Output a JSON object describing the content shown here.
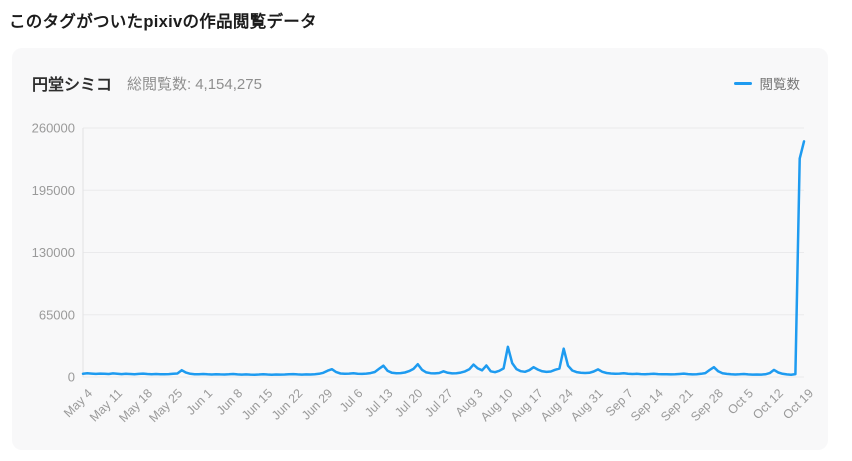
{
  "page": {
    "title": "このタグがついたpixivの作品閲覧データ"
  },
  "panel": {
    "tag_name": "円堂シミコ",
    "total_views_label": "総閲覧数:",
    "total_views_value": "4,154,275",
    "legend_label": "閲覧数"
  },
  "colors": {
    "line": "#1E9BF0",
    "grid": "#eaeaec",
    "axis": "#e2e2e4",
    "tick_text": "#9a9a9a",
    "card_bg": "#f8f8f9"
  },
  "chart_data": {
    "type": "line",
    "title": "",
    "xlabel": "",
    "ylabel": "",
    "x_unit": "day",
    "x_start": "May 4",
    "x_end": "Oct 19",
    "x_tick_every_days": 7,
    "x_tick_labels": [
      "May 4",
      "May 11",
      "May 18",
      "May 25",
      "Jun 1",
      "Jun 8",
      "Jun 15",
      "Jun 22",
      "Jun 29",
      "Jul 6",
      "Jul 13",
      "Jul 20",
      "Jul 27",
      "Aug 3",
      "Aug 10",
      "Aug 17",
      "Aug 24",
      "Aug 31",
      "Sep 7",
      "Sep 14",
      "Sep 21",
      "Sep 28",
      "Oct 5",
      "Oct 12",
      "Oct 19"
    ],
    "y_ticks": [
      0,
      65000,
      130000,
      195000,
      260000
    ],
    "ylim": [
      0,
      260000
    ],
    "grid": true,
    "legend_position": "top-right",
    "series": [
      {
        "name": "閲覧数",
        "color": "#1E9BF0",
        "values": [
          3400,
          3900,
          3500,
          3200,
          3600,
          3300,
          3100,
          3800,
          3400,
          3000,
          3300,
          3100,
          2900,
          3200,
          3600,
          3100,
          2900,
          3100,
          2900,
          2800,
          3000,
          3300,
          3700,
          7100,
          4600,
          3300,
          2900,
          2800,
          3100,
          2800,
          2600,
          2900,
          2700,
          2600,
          2800,
          3100,
          2700,
          2500,
          2700,
          2500,
          2400,
          2600,
          2900,
          2600,
          2400,
          2600,
          2500,
          2600,
          2800,
          3000,
          2700,
          2500,
          2700,
          2600,
          2900,
          3300,
          4400,
          6600,
          8100,
          5100,
          3700,
          3300,
          3500,
          3900,
          3400,
          3200,
          3500,
          4100,
          5200,
          8600,
          11800,
          6400,
          4400,
          3900,
          4100,
          4700,
          6200,
          8500,
          13400,
          7500,
          4800,
          4000,
          3800,
          4200,
          6000,
          4400,
          3800,
          4000,
          4600,
          5800,
          8000,
          12900,
          9000,
          7000,
          12000,
          6000,
          5000,
          6500,
          9000,
          31500,
          14500,
          8300,
          6100,
          5400,
          7100,
          10200,
          7700,
          5900,
          5300,
          5700,
          7500,
          8800,
          29600,
          11800,
          6800,
          5100,
          4500,
          4200,
          4400,
          5700,
          7900,
          5400,
          4200,
          3700,
          3400,
          3600,
          3900,
          3400,
          3100,
          3300,
          3000,
          2900,
          3100,
          3400,
          3000,
          2800,
          2900,
          2700,
          2800,
          3100,
          3500,
          3000,
          2700,
          2900,
          3300,
          4100,
          7300,
          10200,
          5900,
          3900,
          3200,
          2800,
          2600,
          2800,
          3100,
          2700,
          2500,
          2600,
          2500,
          2800,
          4100,
          7400,
          4700,
          3300,
          2700,
          2400,
          3000,
          228000,
          246000
        ]
      }
    ]
  }
}
